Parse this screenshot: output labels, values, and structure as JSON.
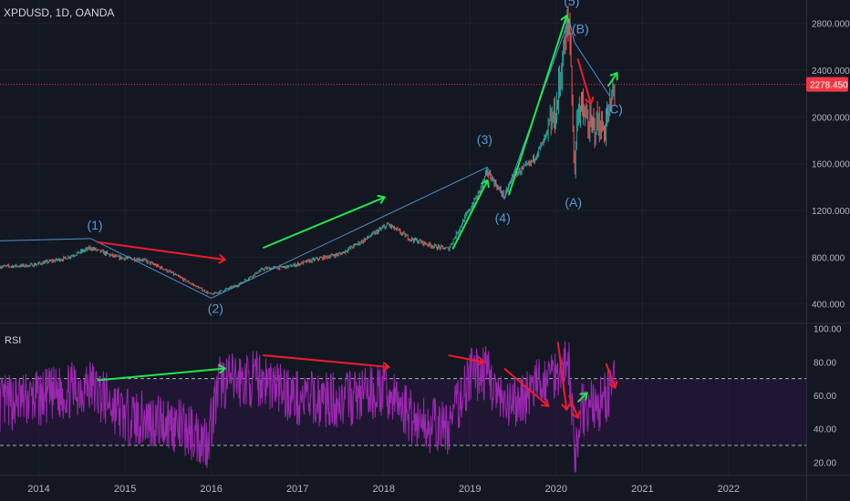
{
  "header": {
    "symbol": "XPDUSD, 1D, OANDA"
  },
  "rsi_panel": {
    "title": "RSI"
  },
  "price_badge": {
    "value": "2278.450"
  },
  "colors": {
    "bg": "#131722",
    "grid": "#1c2030",
    "axis_text": "#b2b5be",
    "up": "#26a69a",
    "down": "#ef5350",
    "wave_line": "#4f8ec9",
    "wave_label": "#5b9bd5",
    "arrow_green": "#22e64f",
    "arrow_red": "#ef1c2c",
    "rsi_line": "#9c27b0",
    "rsi_band": "#2a1740",
    "level_dash": "#d1d4dc",
    "price_line": "#f23645"
  },
  "chart_data": [
    {
      "type": "candlestick",
      "title": "XPDUSD, 1D, OANDA",
      "x_range": [
        2013.55,
        2022.9
      ],
      "ylim": [
        250,
        3000
      ],
      "y_ticks": [
        "400.000",
        "800.000",
        "1200.000",
        "1600.000",
        "2000.000",
        "2400.000",
        "2800.000"
      ],
      "x_ticks": [
        "2014",
        "2015",
        "2016",
        "2017",
        "2018",
        "2019",
        "2020",
        "2021",
        "2022"
      ],
      "current_price": 2278.45,
      "price_path": [
        [
          2013.55,
          720
        ],
        [
          2013.9,
          730
        ],
        [
          2014.3,
          790
        ],
        [
          2014.6,
          880
        ],
        [
          2014.75,
          840
        ],
        [
          2014.9,
          800
        ],
        [
          2015.2,
          780
        ],
        [
          2015.45,
          700
        ],
        [
          2015.7,
          600
        ],
        [
          2016.0,
          480
        ],
        [
          2016.3,
          560
        ],
        [
          2016.6,
          700
        ],
        [
          2016.9,
          720
        ],
        [
          2017.2,
          780
        ],
        [
          2017.5,
          830
        ],
        [
          2017.8,
          960
        ],
        [
          2018.05,
          1080
        ],
        [
          2018.3,
          960
        ],
        [
          2018.6,
          890
        ],
        [
          2018.75,
          870
        ],
        [
          2018.9,
          1080
        ],
        [
          2019.1,
          1350
        ],
        [
          2019.2,
          1530
        ],
        [
          2019.3,
          1420
        ],
        [
          2019.4,
          1320
        ],
        [
          2019.5,
          1500
        ],
        [
          2019.6,
          1550
        ],
        [
          2019.7,
          1600
        ],
        [
          2019.85,
          1780
        ],
        [
          2020.0,
          2050
        ],
        [
          2020.07,
          2480
        ],
        [
          2020.12,
          2700
        ],
        [
          2020.15,
          2820
        ],
        [
          2020.18,
          2300
        ],
        [
          2020.21,
          1500
        ],
        [
          2020.25,
          2100
        ],
        [
          2020.3,
          2050
        ],
        [
          2020.4,
          1900
        ],
        [
          2020.5,
          1950
        ],
        [
          2020.55,
          1880
        ],
        [
          2020.62,
          2050
        ],
        [
          2020.68,
          2278
        ]
      ],
      "waves": {
        "impulse_path": [
          [
            2013.55,
            940
          ],
          [
            2014.6,
            960
          ],
          [
            2016.0,
            450
          ],
          [
            2019.2,
            1570
          ],
          [
            2019.4,
            1300
          ],
          [
            2020.15,
            2840
          ]
        ],
        "correction_path": [
          [
            2020.15,
            2840
          ],
          [
            2020.21,
            2640
          ],
          [
            2020.62,
            2180
          ]
        ],
        "labels": [
          {
            "text": "(1)",
            "x": 2014.65,
            "y": 1035
          },
          {
            "text": "(2)",
            "x": 2016.05,
            "y": 325
          },
          {
            "text": "(3)",
            "x": 2019.17,
            "y": 1770
          },
          {
            "text": "(4)",
            "x": 2019.38,
            "y": 1100
          },
          {
            "text": "(5)",
            "x": 2020.18,
            "y": 2955
          },
          {
            "text": "(A)",
            "x": 2020.2,
            "y": 1230
          },
          {
            "text": "(B)",
            "x": 2020.28,
            "y": 2715
          },
          {
            "text": "(C)",
            "x": 2020.67,
            "y": 2030
          }
        ]
      },
      "arrows": [
        {
          "color": "red",
          "from": [
            2014.68,
            930
          ],
          "to": [
            2016.15,
            780
          ]
        },
        {
          "color": "green",
          "from": [
            2016.6,
            880
          ],
          "to": [
            2018.0,
            1310
          ]
        },
        {
          "color": "green",
          "from": [
            2018.8,
            870
          ],
          "to": [
            2019.2,
            1450
          ]
        },
        {
          "color": "green",
          "from": [
            2019.45,
            1330
          ],
          "to": [
            2020.12,
            2860
          ]
        },
        {
          "color": "red",
          "from": [
            2020.25,
            2500
          ],
          "to": [
            2020.4,
            2120
          ]
        },
        {
          "color": "green",
          "from": [
            2020.6,
            2260
          ],
          "to": [
            2020.7,
            2370
          ]
        }
      ]
    },
    {
      "type": "line",
      "title": "RSI",
      "x_range": [
        2013.55,
        2022.9
      ],
      "ylim": [
        12,
        102
      ],
      "y_ticks": [
        "20.00",
        "40.00",
        "60.00",
        "80.00",
        "100.00"
      ],
      "levels": [
        70,
        30
      ],
      "rsi_path": [
        [
          2013.55,
          55
        ],
        [
          2014.0,
          58
        ],
        [
          2014.6,
          66
        ],
        [
          2015.0,
          47
        ],
        [
          2015.5,
          44
        ],
        [
          2015.95,
          33
        ],
        [
          2016.1,
          68
        ],
        [
          2016.6,
          70
        ],
        [
          2017.0,
          58
        ],
        [
          2017.5,
          57
        ],
        [
          2018.0,
          63
        ],
        [
          2018.4,
          44
        ],
        [
          2018.75,
          40
        ],
        [
          2019.0,
          72
        ],
        [
          2019.2,
          74
        ],
        [
          2019.4,
          50
        ],
        [
          2019.7,
          62
        ],
        [
          2020.0,
          75
        ],
        [
          2020.15,
          80
        ],
        [
          2020.21,
          24
        ],
        [
          2020.3,
          52
        ],
        [
          2020.5,
          54
        ],
        [
          2020.68,
          66
        ]
      ],
      "arrows": [
        {
          "color": "green",
          "from": [
            2014.68,
            69
          ],
          "to": [
            2016.15,
            76
          ]
        },
        {
          "color": "red",
          "from": [
            2016.6,
            84
          ],
          "to": [
            2018.05,
            77
          ]
        },
        {
          "color": "red",
          "from": [
            2018.75,
            84
          ],
          "to": [
            2019.15,
            80
          ]
        },
        {
          "color": "red",
          "from": [
            2019.4,
            76
          ],
          "to": [
            2019.9,
            54
          ]
        },
        {
          "color": "red",
          "from": [
            2020.02,
            92
          ],
          "to": [
            2020.12,
            52
          ]
        },
        {
          "color": "red",
          "from": [
            2020.15,
            60
          ],
          "to": [
            2020.25,
            47
          ]
        },
        {
          "color": "green",
          "from": [
            2020.25,
            56
          ],
          "to": [
            2020.35,
            61
          ]
        },
        {
          "color": "red",
          "from": [
            2020.58,
            79
          ],
          "to": [
            2020.68,
            65
          ]
        }
      ]
    }
  ]
}
